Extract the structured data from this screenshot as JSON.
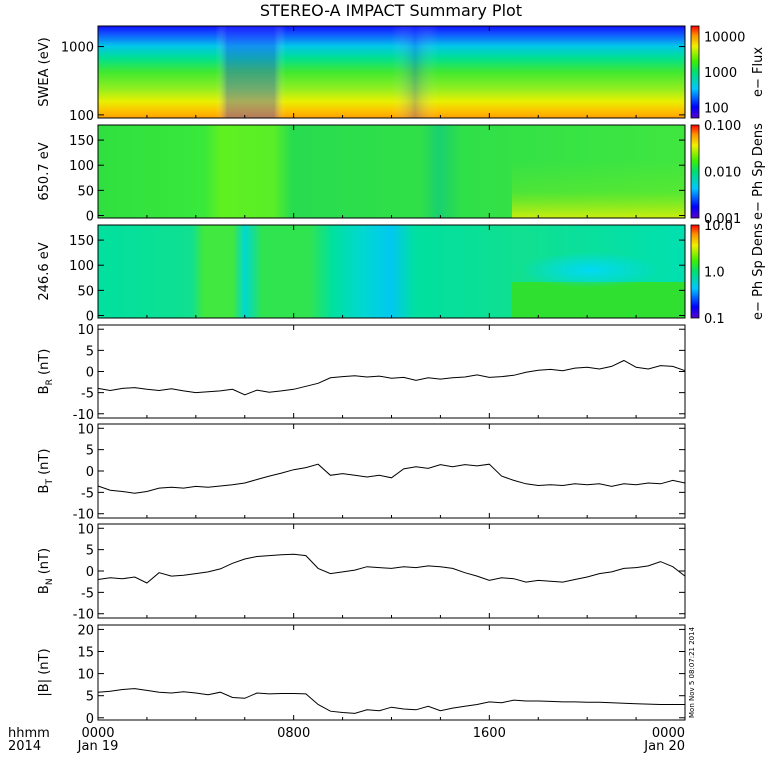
{
  "title": "STEREO-A IMPACT Summary Plot",
  "stamp": "Mon Nov 5 08:07:21 2014",
  "x_axis": {
    "corner_labels": [
      "hhmm",
      "2014"
    ],
    "ticks": [
      {
        "hhmm": "0000",
        "date": "Jan 19"
      },
      {
        "hhmm": "0800",
        "date": ""
      },
      {
        "hhmm": "1600",
        "date": ""
      },
      {
        "hhmm": "0000",
        "date": "Jan 20"
      }
    ]
  },
  "chart_data": [
    {
      "type": "heatmap",
      "id": "swea",
      "ylabel": "SWEA (eV)",
      "yscale": "log",
      "ylim": [
        90,
        2000
      ],
      "yticks": [
        "1000",
        "100"
      ],
      "colorbar": {
        "label": "e− Flux",
        "scale": "log",
        "range": [
          50,
          20000
        ],
        "ticks": [
          "10000",
          "1000",
          "100"
        ]
      },
      "description_values": {
        "energy_eV": [
          100,
          150,
          250,
          400,
          700,
          1000,
          1400,
          1800
        ],
        "log10_flux_typical": [
          4.1,
          3.9,
          3.5,
          3.1,
          2.7,
          2.3,
          1.9,
          1.7
        ]
      }
    },
    {
      "type": "heatmap",
      "id": "pad650",
      "ylabel": "650.7 eV",
      "ylim": [
        -5,
        180
      ],
      "yticks": [
        "150",
        "100",
        "50",
        "0"
      ],
      "colorbar": {
        "label": "e− Ph Sp Dens",
        "scale": "log",
        "range": [
          0.001,
          0.1
        ],
        "ticks": [
          "0.100",
          "0.010",
          "0.001"
        ]
      }
    },
    {
      "type": "heatmap",
      "id": "pad246",
      "ylabel": "246.6 eV",
      "ylim": [
        -5,
        180
      ],
      "yticks": [
        "150",
        "100",
        "50",
        "0"
      ],
      "colorbar": {
        "label": "e− Ph Sp Dens",
        "scale": "log",
        "range": [
          0.1,
          10
        ],
        "ticks": [
          "10.0",
          "1.0",
          "0.1"
        ]
      }
    },
    {
      "type": "line",
      "id": "br",
      "ylabel": "B",
      "ylabel_sub": "R",
      "ylabel_unit": "(nT)",
      "ylim": [
        -11,
        11
      ],
      "yticks": [
        "10",
        "5",
        "0",
        "-5",
        "-10"
      ],
      "x_hours": [
        0,
        0.5,
        1,
        1.5,
        2,
        2.5,
        3,
        3.5,
        4,
        4.5,
        5,
        5.5,
        6,
        6.5,
        7,
        7.5,
        8,
        8.5,
        9,
        9.5,
        10,
        10.5,
        11,
        11.5,
        12,
        12.5,
        13,
        13.5,
        14,
        14.5,
        15,
        15.5,
        16,
        16.5,
        17,
        17.5,
        18,
        18.5,
        19,
        19.5,
        20,
        20.5,
        21,
        21.5,
        22,
        22.5,
        23,
        23.5,
        24
      ],
      "values": [
        -4,
        -4.5,
        -4,
        -3.8,
        -4.2,
        -4.5,
        -4.1,
        -4.6,
        -5.0,
        -4.8,
        -4.6,
        -4.2,
        -5.5,
        -4.4,
        -4.9,
        -4.6,
        -4.2,
        -3.5,
        -2.8,
        -1.5,
        -1.2,
        -1.0,
        -1.3,
        -1.1,
        -1.6,
        -1.4,
        -2.1,
        -1.5,
        -1.8,
        -1.5,
        -1.3,
        -0.8,
        -1.4,
        -1.2,
        -0.9,
        -0.2,
        0.3,
        0.5,
        0.2,
        0.8,
        1.0,
        0.6,
        1.2,
        2.6,
        1.0,
        0.6,
        1.4,
        1.2,
        0.2
      ]
    },
    {
      "type": "line",
      "id": "bt",
      "ylabel": "B",
      "ylabel_sub": "T",
      "ylabel_unit": "(nT)",
      "ylim": [
        -11,
        11
      ],
      "yticks": [
        "10",
        "5",
        "0",
        "-5",
        "-10"
      ],
      "x_hours": [
        0,
        0.5,
        1,
        1.5,
        2,
        2.5,
        3,
        3.5,
        4,
        4.5,
        5,
        5.5,
        6,
        6.5,
        7,
        7.5,
        8,
        8.5,
        9,
        9.5,
        10,
        10.5,
        11,
        11.5,
        12,
        12.5,
        13,
        13.5,
        14,
        14.5,
        15,
        15.5,
        16,
        16.5,
        17,
        17.5,
        18,
        18.5,
        19,
        19.5,
        20,
        20.5,
        21,
        21.5,
        22,
        22.5,
        23,
        23.5,
        24
      ],
      "values": [
        -3.5,
        -4.5,
        -4.8,
        -5.2,
        -4.8,
        -4.0,
        -3.8,
        -4.0,
        -3.6,
        -3.8,
        -3.5,
        -3.2,
        -2.8,
        -2.0,
        -1.2,
        -0.5,
        0.3,
        0.8,
        1.6,
        -1.0,
        -0.6,
        -1.0,
        -1.4,
        -1.0,
        -1.6,
        0.5,
        1.0,
        0.6,
        1.5,
        1.0,
        1.5,
        1.2,
        1.6,
        -1.2,
        -2.2,
        -3.0,
        -3.4,
        -3.2,
        -3.4,
        -3.0,
        -3.2,
        -3.0,
        -3.6,
        -3.0,
        -3.2,
        -2.8,
        -3.0,
        -2.2,
        -2.8
      ]
    },
    {
      "type": "line",
      "id": "bn",
      "ylabel": "B",
      "ylabel_sub": "N",
      "ylabel_unit": "(nT)",
      "ylim": [
        -11,
        11
      ],
      "yticks": [
        "10",
        "5",
        "0",
        "-5",
        "-10"
      ],
      "x_hours": [
        0,
        0.5,
        1,
        1.5,
        2,
        2.5,
        3,
        3.5,
        4,
        4.5,
        5,
        5.5,
        6,
        6.5,
        7,
        7.5,
        8,
        8.5,
        9,
        9.5,
        10,
        10.5,
        11,
        11.5,
        12,
        12.5,
        13,
        13.5,
        14,
        14.5,
        15,
        15.5,
        16,
        16.5,
        17,
        17.5,
        18,
        18.5,
        19,
        19.5,
        20,
        20.5,
        21,
        21.5,
        22,
        22.5,
        23,
        23.5,
        24
      ],
      "values": [
        -2.0,
        -1.6,
        -1.8,
        -1.4,
        -2.8,
        -0.4,
        -1.2,
        -1.0,
        -0.6,
        -0.2,
        0.5,
        1.8,
        2.8,
        3.4,
        3.6,
        3.8,
        3.9,
        3.6,
        0.6,
        -0.6,
        -0.2,
        0.2,
        1.0,
        0.8,
        0.6,
        1.0,
        0.8,
        1.2,
        1.0,
        0.6,
        -0.4,
        -1.2,
        -2.2,
        -1.6,
        -1.8,
        -2.6,
        -2.2,
        -2.4,
        -2.6,
        -2.0,
        -1.4,
        -0.6,
        -0.2,
        0.6,
        0.8,
        1.2,
        2.2,
        1.0,
        -1.2
      ]
    },
    {
      "type": "line",
      "id": "bmag",
      "ylabel": "|B|",
      "ylabel_unit": "(nT)",
      "ylim": [
        -0.5,
        21
      ],
      "yticks": [
        "20",
        "15",
        "10",
        "5",
        "0"
      ],
      "x_hours": [
        0,
        0.5,
        1,
        1.5,
        2,
        2.5,
        3,
        3.5,
        4,
        4.5,
        5,
        5.5,
        6,
        6.5,
        7,
        7.5,
        8,
        8.5,
        9,
        9.5,
        10,
        10.5,
        11,
        11.5,
        12,
        12.5,
        13,
        13.5,
        14,
        14.5,
        15,
        15.5,
        16,
        16.5,
        17,
        17.5,
        18,
        18.5,
        19,
        19.5,
        20,
        20.5,
        21,
        21.5,
        22,
        22.5,
        23,
        23.5,
        24
      ],
      "values": [
        5.8,
        6.0,
        6.4,
        6.6,
        6.2,
        5.8,
        5.6,
        5.9,
        5.6,
        5.2,
        5.8,
        4.6,
        4.4,
        5.6,
        5.4,
        5.5,
        5.5,
        5.4,
        3.0,
        1.5,
        1.2,
        1.0,
        1.8,
        1.6,
        2.4,
        2.0,
        1.8,
        2.6,
        1.6,
        2.2,
        2.6,
        3.0,
        3.6,
        3.4,
        4.0,
        3.8,
        3.8,
        3.7,
        3.6,
        3.6,
        3.5,
        3.5,
        3.4,
        3.3,
        3.2,
        3.1,
        3.0,
        3.0,
        3.0
      ]
    }
  ]
}
